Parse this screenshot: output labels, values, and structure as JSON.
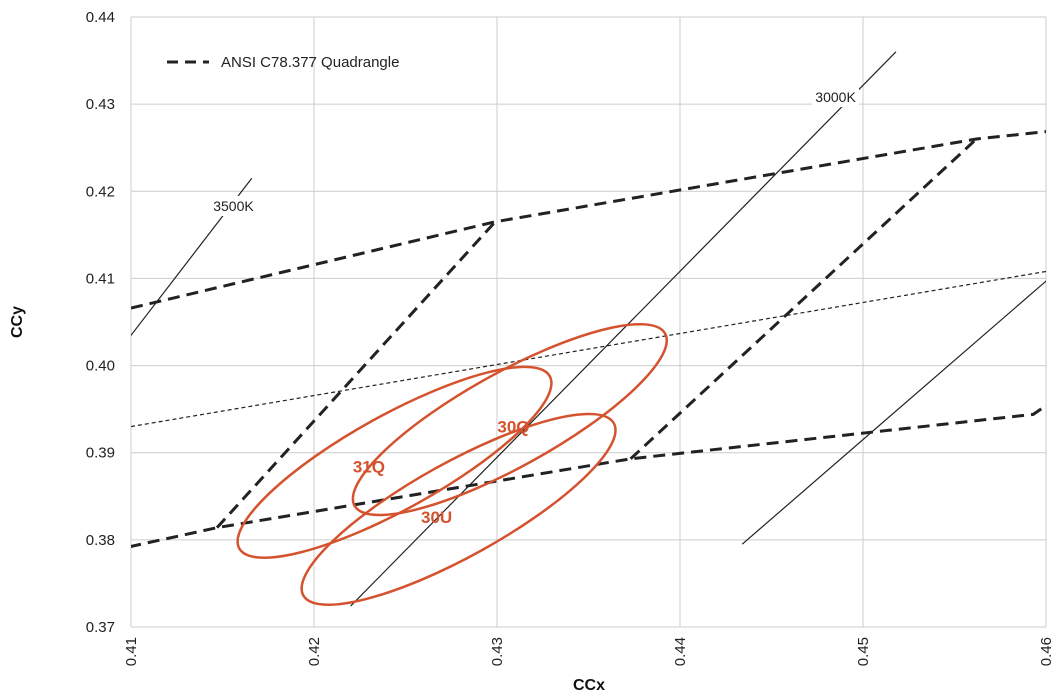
{
  "chart_data": {
    "type": "scatter",
    "title": "",
    "xlabel": "CCx",
    "ylabel": "CCy",
    "xlim": [
      0.41,
      0.46
    ],
    "ylim": [
      0.37,
      0.44
    ],
    "x_ticks": [
      "0.41",
      "0.42",
      "0.43",
      "0.44",
      "0.45",
      "0.46"
    ],
    "y_ticks": [
      "0.37",
      "0.38",
      "0.39",
      "0.40",
      "0.41",
      "0.42",
      "0.43",
      "0.44"
    ],
    "grid": true,
    "legend_position": "top-left",
    "legend": [
      {
        "label": "ANSI C78.377 Quadrangle",
        "style": "dashed",
        "color": "#222222"
      }
    ],
    "quadrangle_lines": [
      {
        "points": [
          [
            0.41,
            0.4066
          ],
          [
            0.4299,
            0.4165
          ],
          [
            0.4562,
            0.426
          ],
          [
            0.4607,
            0.427
          ]
        ]
      },
      {
        "points": [
          [
            0.4099,
            0.3792
          ],
          [
            0.4147,
            0.3814
          ],
          [
            0.4373,
            0.3893
          ],
          [
            0.4593,
            0.3944
          ],
          [
            0.4607,
            0.3964
          ]
        ]
      },
      {
        "points": [
          [
            0.4147,
            0.3814
          ],
          [
            0.4299,
            0.4165
          ]
        ]
      },
      {
        "points": [
          [
            0.4373,
            0.3893
          ],
          [
            0.4562,
            0.426
          ]
        ]
      }
    ],
    "blackbody_locus": {
      "style": "dotted",
      "points": [
        [
          0.41,
          0.393
        ],
        [
          0.46,
          0.4108
        ]
      ]
    },
    "cct_lines": [
      {
        "label": "3500K",
        "points": [
          [
            0.4099,
            0.4032
          ],
          [
            0.4166,
            0.4215
          ]
        ],
        "label_at": [
          0.4156,
          0.4182
        ]
      },
      {
        "label": "3000K",
        "points": [
          [
            0.422,
            0.3724
          ],
          [
            0.4518,
            0.436
          ]
        ],
        "label_at": [
          0.4485,
          0.4307
        ]
      },
      {
        "label": "",
        "points": [
          [
            0.4434,
            0.3795
          ],
          [
            0.4605,
            0.4106
          ]
        ]
      }
    ],
    "regions": [
      {
        "name": "31Q",
        "center": [
          0.4244,
          0.3889
        ],
        "rx": 0.0097,
        "ry": 0.0054,
        "angle_deg": -29,
        "label_at": [
          0.423,
          0.3884
        ]
      },
      {
        "name": "30Q",
        "center": [
          0.4307,
          0.3938
        ],
        "rx": 0.0097,
        "ry": 0.0054,
        "angle_deg": -29,
        "label_at": [
          0.4309,
          0.393
        ]
      },
      {
        "name": "30U",
        "center": [
          0.4279,
          0.3835
        ],
        "rx": 0.0097,
        "ry": 0.0054,
        "angle_deg": -29,
        "label_at": [
          0.4267,
          0.3826
        ]
      }
    ],
    "colors": {
      "region": "#d4522e",
      "line": "#222222",
      "grid": "#cccccc"
    }
  }
}
